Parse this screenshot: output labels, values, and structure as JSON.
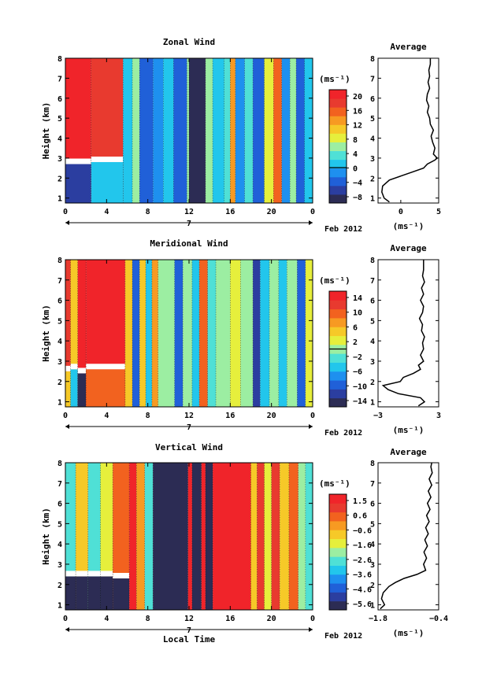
{
  "chart_data": [
    {
      "type": "heatmap",
      "title": "Zonal Wind",
      "ylabel": "Height (km)",
      "xticks": [
        "0",
        "4",
        "8",
        "12",
        "16",
        "20",
        "0"
      ],
      "xlim": [
        0,
        24
      ],
      "ylim": [
        0.75,
        8
      ],
      "yticks": [
        "1",
        "2",
        "3",
        "4",
        "5",
        "6",
        "7",
        "8"
      ],
      "day_label": "7",
      "date_label": "Feb 2012",
      "colorbar": {
        "unit": "(ms⁻¹)",
        "ticks": [
          "20",
          "16",
          "12",
          "8",
          "4",
          "0",
          "−4",
          "−8"
        ],
        "range": [
          -10,
          22
        ],
        "zero_line": 0
      },
      "columns": [
        {
          "x0": 0.0,
          "x1": 2.5,
          "value": 20,
          "low_value": -6,
          "low_top": 2.7
        },
        {
          "x0": 2.5,
          "x1": 5.6,
          "value": 18,
          "low_value": 2,
          "low_top": 2.8
        },
        {
          "x0": 5.6,
          "x1": 6.5,
          "value": 0
        },
        {
          "x0": 6.5,
          "x1": 7.2,
          "value": 6
        },
        {
          "x0": 7.2,
          "x1": 8.5,
          "value": -4
        },
        {
          "x0": 8.5,
          "x1": 9.5,
          "value": -2
        },
        {
          "x0": 9.5,
          "x1": 10.5,
          "value": 1
        },
        {
          "x0": 10.5,
          "x1": 11.8,
          "value": -5
        },
        {
          "x0": 11.8,
          "x1": 12.0,
          "value": 6
        },
        {
          "x0": 12.0,
          "x1": 13.6,
          "value": -9
        },
        {
          "x0": 13.6,
          "x1": 14.3,
          "value": 6
        },
        {
          "x0": 14.3,
          "x1": 15.4,
          "value": 0
        },
        {
          "x0": 15.4,
          "x1": 16.0,
          "value": 4
        },
        {
          "x0": 16.0,
          "x1": 16.5,
          "value": 14
        },
        {
          "x0": 16.5,
          "x1": 17.4,
          "value": -2
        },
        {
          "x0": 17.4,
          "x1": 18.2,
          "value": 3
        },
        {
          "x0": 18.2,
          "x1": 19.3,
          "value": -5
        },
        {
          "x0": 19.3,
          "x1": 20.2,
          "value": 8
        },
        {
          "x0": 20.2,
          "x1": 21.0,
          "value": 15
        },
        {
          "x0": 21.0,
          "x1": 21.8,
          "value": -1
        },
        {
          "x0": 21.8,
          "x1": 22.4,
          "value": 5
        },
        {
          "x0": 22.4,
          "x1": 23.2,
          "value": -4
        },
        {
          "x0": 23.2,
          "x1": 24.0,
          "value": 2
        }
      ],
      "average": {
        "title": "Average",
        "xlabel": "(ms⁻¹)",
        "xticks": [
          "0",
          "5"
        ],
        "xlim": [
          -3,
          5
        ],
        "heights": [
          0.8,
          1.0,
          1.3,
          1.6,
          1.9,
          2.1,
          2.3,
          2.5,
          2.7,
          2.9,
          3.0,
          3.2,
          3.5,
          3.8,
          4.1,
          4.4,
          4.7,
          5.0,
          5.3,
          5.6,
          5.9,
          6.2,
          6.5,
          6.8,
          7.1,
          7.4,
          7.7,
          8.0
        ],
        "values": [
          -1.5,
          -2.2,
          -2.5,
          -2.4,
          -1.5,
          0.0,
          1.5,
          3.0,
          3.5,
          4.5,
          4.8,
          4.3,
          4.5,
          4.2,
          4.0,
          4.3,
          3.9,
          3.8,
          3.5,
          3.7,
          3.4,
          3.5,
          3.8,
          3.6,
          3.8,
          3.7,
          3.9,
          3.9
        ]
      }
    },
    {
      "type": "heatmap",
      "title": "Meridional Wind",
      "ylabel": "Height (km)",
      "xticks": [
        "0",
        "4",
        "8",
        "12",
        "16",
        "20",
        "0"
      ],
      "xlim": [
        0,
        24
      ],
      "ylim": [
        0.75,
        8
      ],
      "yticks": [
        "1",
        "2",
        "3",
        "4",
        "5",
        "6",
        "7",
        "8"
      ],
      "day_label": "7",
      "date_label": "Feb 2012",
      "colorbar": {
        "unit": "(ms⁻¹)",
        "ticks": [
          "14",
          "10",
          "6",
          "2",
          "−2",
          "−6",
          "−10",
          "−14"
        ],
        "range": [
          -16,
          16
        ],
        "zero_line": 0
      },
      "columns": [
        {
          "x0": 0.0,
          "x1": 0.5,
          "value": 12,
          "low_value": 6,
          "low_top": 2.5
        },
        {
          "x0": 0.5,
          "x1": 1.2,
          "value": 6,
          "low_value": -4,
          "low_top": 2.6
        },
        {
          "x0": 1.2,
          "x1": 2.0,
          "value": 14,
          "low_value": -14,
          "low_top": 2.4
        },
        {
          "x0": 2.0,
          "x1": 5.8,
          "value": 15,
          "low_value": 10,
          "low_top": 2.6
        },
        {
          "x0": 5.8,
          "x1": 6.5,
          "value": 6
        },
        {
          "x0": 6.5,
          "x1": 7.2,
          "value": -9
        },
        {
          "x0": 7.2,
          "x1": 7.8,
          "value": 4
        },
        {
          "x0": 7.8,
          "x1": 8.4,
          "value": -6
        },
        {
          "x0": 8.4,
          "x1": 9.0,
          "value": 8
        },
        {
          "x0": 9.0,
          "x1": 10.6,
          "value": -1
        },
        {
          "x0": 10.6,
          "x1": 11.4,
          "value": -10
        },
        {
          "x0": 11.4,
          "x1": 12.3,
          "value": 0
        },
        {
          "x0": 12.3,
          "x1": 13.0,
          "value": -5
        },
        {
          "x0": 13.0,
          "x1": 13.8,
          "value": 9
        },
        {
          "x0": 13.8,
          "x1": 14.6,
          "value": -3
        },
        {
          "x0": 14.6,
          "x1": 16.0,
          "value": -1
        },
        {
          "x0": 16.0,
          "x1": 17.0,
          "value": 3
        },
        {
          "x0": 17.0,
          "x1": 18.2,
          "value": 0
        },
        {
          "x0": 18.2,
          "x1": 18.9,
          "value": -13
        },
        {
          "x0": 18.9,
          "x1": 19.8,
          "value": -6
        },
        {
          "x0": 19.8,
          "x1": 20.7,
          "value": 1
        },
        {
          "x0": 20.7,
          "x1": 21.5,
          "value": -4
        },
        {
          "x0": 21.5,
          "x1": 22.5,
          "value": 0
        },
        {
          "x0": 22.5,
          "x1": 23.3,
          "value": -9
        },
        {
          "x0": 23.3,
          "x1": 24.0,
          "value": 2
        }
      ],
      "average": {
        "title": "Average",
        "xlabel": "(ms⁻¹)",
        "xticks": [
          "−3",
          "3"
        ],
        "xlim": [
          -3,
          3
        ],
        "heights": [
          0.8,
          1.0,
          1.2,
          1.4,
          1.6,
          1.8,
          2.0,
          2.2,
          2.4,
          2.6,
          2.8,
          3.0,
          3.3,
          3.6,
          3.9,
          4.2,
          4.5,
          4.8,
          5.1,
          5.4,
          5.7,
          6.0,
          6.3,
          6.6,
          6.9,
          7.2,
          7.5,
          7.8,
          8.0
        ],
        "values": [
          1.0,
          1.6,
          1.2,
          -1.0,
          -2.0,
          -2.5,
          -0.8,
          -0.5,
          0.5,
          1.2,
          1.0,
          1.5,
          1.2,
          1.5,
          1.4,
          1.6,
          1.3,
          1.4,
          1.1,
          1.4,
          1.5,
          1.2,
          1.5,
          1.3,
          1.6,
          1.4,
          1.5,
          1.5,
          1.5
        ]
      }
    },
    {
      "type": "heatmap",
      "title": "Vertical Wind",
      "ylabel": "Height (km)",
      "xlabel": "Local Time",
      "xticks": [
        "0",
        "4",
        "8",
        "12",
        "16",
        "20",
        "0"
      ],
      "xlim": [
        0,
        24
      ],
      "ylim": [
        0.75,
        8
      ],
      "yticks": [
        "1",
        "2",
        "3",
        "4",
        "5",
        "6",
        "7",
        "8"
      ],
      "day_label": "7",
      "date_label": "Feb 2012",
      "colorbar": {
        "unit": "(ms⁻¹)",
        "ticks": [
          "1.5",
          "0.6",
          "−0.6",
          "−1.6",
          "−2.6",
          "−3.6",
          "−4.6",
          "−5.6"
        ],
        "range": [
          -6,
          2
        ],
        "zero_line": null
      },
      "columns": [
        {
          "x0": 0.0,
          "x1": 1.0,
          "value": -2.5,
          "low_value": -6,
          "low_top": 2.4
        },
        {
          "x0": 1.0,
          "x1": 2.2,
          "value": -1.0,
          "low_value": -6,
          "low_top": 2.4
        },
        {
          "x0": 2.2,
          "x1": 3.4,
          "value": -2.8,
          "low_value": -6,
          "low_top": 2.4
        },
        {
          "x0": 3.4,
          "x1": 4.6,
          "value": -1.5,
          "low_value": -6,
          "low_top": 2.4
        },
        {
          "x0": 4.6,
          "x1": 6.2,
          "value": 0.2,
          "low_value": -6,
          "low_top": 2.3
        },
        {
          "x0": 6.2,
          "x1": 6.9,
          "value": 1.5
        },
        {
          "x0": 6.9,
          "x1": 7.7,
          "value": 0.0
        },
        {
          "x0": 7.7,
          "x1": 8.5,
          "value": -2.5
        },
        {
          "x0": 8.5,
          "x1": 11.9,
          "value": -6.0
        },
        {
          "x0": 11.9,
          "x1": 12.3,
          "value": 1.5
        },
        {
          "x0": 12.3,
          "x1": 13.2,
          "value": -6.0
        },
        {
          "x0": 13.2,
          "x1": 13.6,
          "value": 1.5
        },
        {
          "x0": 13.6,
          "x1": 14.3,
          "value": -6.0
        },
        {
          "x0": 14.3,
          "x1": 18.0,
          "value": 1.8
        },
        {
          "x0": 18.0,
          "x1": 18.6,
          "value": -0.6
        },
        {
          "x0": 18.6,
          "x1": 19.3,
          "value": 1.2
        },
        {
          "x0": 19.3,
          "x1": 20.0,
          "value": -1.2
        },
        {
          "x0": 20.0,
          "x1": 20.8,
          "value": 1.0
        },
        {
          "x0": 20.8,
          "x1": 21.7,
          "value": -0.5
        },
        {
          "x0": 21.7,
          "x1": 22.6,
          "value": 0.6
        },
        {
          "x0": 22.6,
          "x1": 23.3,
          "value": -1.8
        },
        {
          "x0": 23.3,
          "x1": 24.0,
          "value": -2.8
        }
      ],
      "average": {
        "title": "Average",
        "xlabel": "(ms⁻¹)",
        "xticks": [
          "−1.8",
          "−0.4"
        ],
        "xlim": [
          -1.8,
          -0.4
        ],
        "heights": [
          0.8,
          1.0,
          1.3,
          1.6,
          1.9,
          2.1,
          2.3,
          2.5,
          2.7,
          3.0,
          3.3,
          3.6,
          3.9,
          4.2,
          4.5,
          4.8,
          5.1,
          5.4,
          5.7,
          6.0,
          6.3,
          6.6,
          6.9,
          7.2,
          7.5,
          7.8,
          8.0
        ],
        "values": [
          -1.75,
          -1.65,
          -1.72,
          -1.68,
          -1.55,
          -1.4,
          -1.2,
          -0.9,
          -0.7,
          -0.75,
          -0.68,
          -0.74,
          -0.66,
          -0.72,
          -0.64,
          -0.7,
          -0.62,
          -0.68,
          -0.6,
          -0.66,
          -0.58,
          -0.64,
          -0.56,
          -0.62,
          -0.55,
          -0.58,
          -0.56
        ]
      }
    }
  ]
}
